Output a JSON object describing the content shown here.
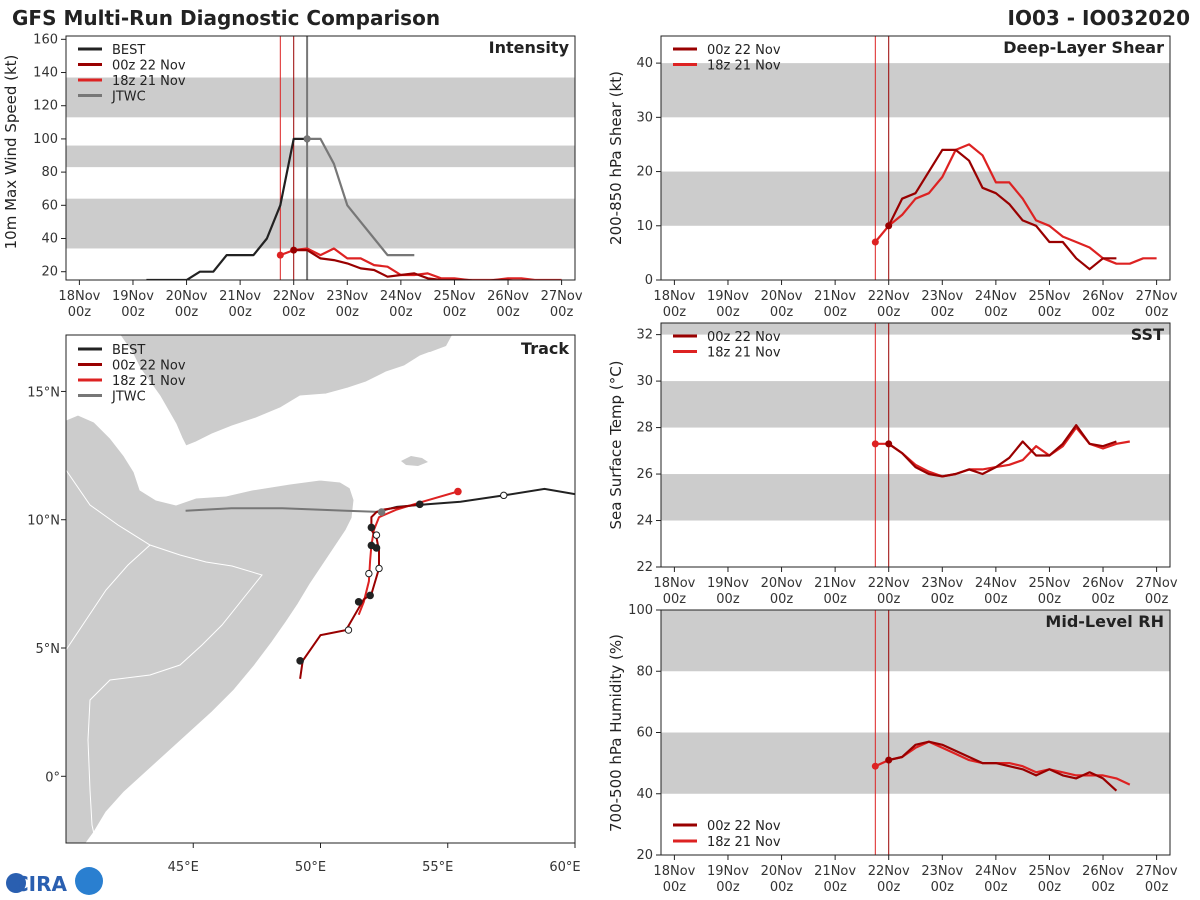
{
  "header": {
    "title": "GFS Multi-Run Diagnostic Comparison",
    "storm_id": "IO03 - IO032020"
  },
  "colors": {
    "best": "#222222",
    "run_00z": "#990000",
    "run_18z": "#dd2222",
    "jtwc": "#777777",
    "band": "#cccccc",
    "land": "#cccccc"
  },
  "time_axis": {
    "labels": [
      [
        "18Nov",
        "00z"
      ],
      [
        "19Nov",
        "00z"
      ],
      [
        "20Nov",
        "00z"
      ],
      [
        "21Nov",
        "00z"
      ],
      [
        "22Nov",
        "00z"
      ],
      [
        "23Nov",
        "00z"
      ],
      [
        "24Nov",
        "00z"
      ],
      [
        "25Nov",
        "00z"
      ],
      [
        "26Nov",
        "00z"
      ],
      [
        "27Nov",
        "00z"
      ]
    ],
    "xlim": [
      -0.25,
      9.25
    ],
    "vlines": [
      {
        "t": 3.75,
        "series": "run_18z"
      },
      {
        "t": 4.0,
        "series": "run_00z"
      },
      {
        "t": 4.25,
        "series": "jtwc"
      }
    ]
  },
  "logo": {
    "text": "CIRA"
  },
  "chart_data": [
    {
      "id": "intensity",
      "type": "line",
      "title": "Intensity",
      "ylabel": "10m Max Wind Speed (kt)",
      "ylim": [
        15,
        162
      ],
      "yticks": [
        20,
        40,
        60,
        80,
        100,
        120,
        140,
        160
      ],
      "bands": [
        [
          34,
          64
        ],
        [
          83,
          96
        ],
        [
          113,
          137
        ]
      ],
      "vlines": true,
      "legend": {
        "position": "top-left",
        "entries": [
          {
            "label": "BEST",
            "series": "best"
          },
          {
            "label": "00z 22 Nov",
            "series": "run_00z"
          },
          {
            "label": "18z 21 Nov",
            "series": "run_18z"
          },
          {
            "label": "JTWC",
            "series": "jtwc"
          }
        ]
      },
      "series": [
        {
          "name": "BEST",
          "key": "best",
          "x": [
            1.25,
            1.5,
            1.75,
            2.0,
            2.25,
            2.5,
            2.75,
            3.0,
            3.25,
            3.5,
            3.75,
            4.0,
            4.25
          ],
          "y": [
            15,
            15,
            15,
            15,
            20,
            20,
            30,
            30,
            30,
            40,
            60,
            100,
            100
          ]
        },
        {
          "name": "JTWC",
          "key": "jtwc",
          "x": [
            4.25,
            4.5,
            4.75,
            5.0,
            5.25,
            5.5,
            5.75,
            6.0,
            6.25
          ],
          "y": [
            100,
            100,
            85,
            60,
            50,
            40,
            30,
            30,
            30
          ],
          "trim": true
        },
        {
          "name": "18z 21 Nov",
          "key": "run_18z",
          "start": 3.75,
          "y": [
            30,
            33,
            34,
            30,
            34,
            28,
            28,
            24,
            23,
            18,
            18,
            19,
            16,
            16,
            15,
            15,
            15,
            16,
            16,
            15,
            15,
            15
          ]
        },
        {
          "name": "00z 22 Nov",
          "key": "run_00z",
          "start": 4.0,
          "y": [
            33,
            33,
            28,
            27,
            25,
            22,
            21,
            17,
            18,
            19,
            16,
            15,
            15,
            15,
            14,
            15,
            15,
            14,
            14,
            14,
            14
          ]
        }
      ]
    },
    {
      "id": "shear",
      "type": "line",
      "title": "Deep-Layer Shear",
      "ylabel": "200-850 hPa Shear (kt)",
      "ylim": [
        0,
        45
      ],
      "yticks": [
        0,
        10,
        20,
        30,
        40
      ],
      "bands": [
        [
          10,
          20
        ],
        [
          30,
          40
        ]
      ],
      "vlines": true,
      "legend": {
        "position": "top-left",
        "entries": [
          {
            "label": "00z 22 Nov",
            "series": "run_00z"
          },
          {
            "label": "18z 21 Nov",
            "series": "run_18z"
          }
        ]
      },
      "series": [
        {
          "name": "18z 21 Nov",
          "key": "run_18z",
          "start": 3.75,
          "y": [
            7,
            10,
            12,
            15,
            16,
            19,
            24,
            25,
            23,
            18,
            18,
            15,
            11,
            10,
            8,
            7,
            6,
            4,
            3,
            3,
            4,
            4
          ]
        },
        {
          "name": "00z 22 Nov",
          "key": "run_00z",
          "start": 4.0,
          "y": [
            10,
            15,
            16,
            20,
            24,
            24,
            22,
            17,
            16,
            14,
            11,
            10,
            7,
            7,
            4,
            2,
            4,
            4
          ]
        }
      ]
    },
    {
      "id": "sst",
      "type": "line",
      "title": "SST",
      "ylabel": "Sea Surface Temp (°C)",
      "ylim": [
        22,
        32.5
      ],
      "yticks": [
        22,
        24,
        26,
        28,
        30,
        32
      ],
      "bands": [
        [
          24,
          26
        ],
        [
          28,
          30
        ],
        [
          32,
          33
        ]
      ],
      "vlines": true,
      "legend": {
        "position": "top-left",
        "entries": [
          {
            "label": "00z 22 Nov",
            "series": "run_00z"
          },
          {
            "label": "18z 21 Nov",
            "series": "run_18z"
          }
        ]
      },
      "series": [
        {
          "name": "18z 21 Nov",
          "key": "run_18z",
          "start": 3.75,
          "y": [
            27.3,
            27.3,
            26.9,
            26.4,
            26.1,
            25.9,
            26.0,
            26.2,
            26.2,
            26.3,
            26.4,
            26.6,
            27.2,
            26.8,
            27.2,
            28.0,
            27.3,
            27.1,
            27.3,
            27.4
          ]
        },
        {
          "name": "00z 22 Nov",
          "key": "run_00z",
          "start": 4.0,
          "y": [
            27.3,
            26.9,
            26.3,
            26.0,
            25.9,
            26.0,
            26.2,
            26.0,
            26.3,
            26.7,
            27.4,
            26.8,
            26.8,
            27.3,
            28.1,
            27.3,
            27.2,
            27.4
          ]
        }
      ]
    },
    {
      "id": "rh",
      "type": "line",
      "title": "Mid-Level RH",
      "ylabel": "700-500 hPa Humidity (%)",
      "ylim": [
        20,
        100
      ],
      "yticks": [
        20,
        40,
        60,
        80,
        100
      ],
      "bands": [
        [
          40,
          60
        ],
        [
          80,
          100
        ]
      ],
      "vlines": true,
      "legend": {
        "position": "bottom-left",
        "entries": [
          {
            "label": "00z 22 Nov",
            "series": "run_00z"
          },
          {
            "label": "18z 21 Nov",
            "series": "run_18z"
          }
        ]
      },
      "series": [
        {
          "name": "18z 21 Nov",
          "key": "run_18z",
          "start": 3.75,
          "y": [
            49,
            51,
            52,
            55,
            57,
            55,
            53,
            51,
            50,
            50,
            50,
            49,
            47,
            48,
            47,
            46,
            46,
            46,
            45,
            43
          ]
        },
        {
          "name": "00z 22 Nov",
          "key": "run_00z",
          "start": 4.0,
          "y": [
            51,
            52,
            56,
            57,
            56,
            54,
            52,
            50,
            50,
            49,
            48,
            46,
            48,
            46,
            45,
            47,
            45,
            41
          ]
        }
      ]
    },
    {
      "id": "track",
      "type": "map",
      "title": "Track",
      "lon_range": [
        40,
        60
      ],
      "lat_range": [
        -2.6,
        17.2
      ],
      "xticks": [
        {
          "v": 45,
          "label": "45°E"
        },
        {
          "v": 50,
          "label": "50°E"
        },
        {
          "v": 55,
          "label": "55°E"
        },
        {
          "v": 60,
          "label": "60°E"
        }
      ],
      "yticks": [
        {
          "v": 0,
          "label": "0°"
        },
        {
          "v": 5,
          "label": "5°N"
        },
        {
          "v": 10,
          "label": "10°N"
        },
        {
          "v": 15,
          "label": "15°N"
        }
      ],
      "legend": {
        "position": "top-left",
        "entries": [
          {
            "label": "BEST",
            "series": "best"
          },
          {
            "label": "00z 22 Nov",
            "series": "run_00z"
          },
          {
            "label": "18z 21 Nov",
            "series": "run_18z"
          },
          {
            "label": "JTWC",
            "series": "jtwc"
          }
        ]
      },
      "tracks": [
        {
          "name": "BEST",
          "key": "best",
          "points": [
            [
              60.0,
              11.0
            ],
            [
              58.8,
              11.2
            ],
            [
              57.2,
              10.95
            ],
            [
              55.5,
              10.7
            ],
            [
              54.2,
              10.6
            ],
            [
              53.0,
              10.5
            ],
            [
              52.2,
              10.3
            ]
          ],
          "open_markers": [
            [
              57.2,
              10.95
            ]
          ],
          "filled_markers": []
        },
        {
          "name": "JTWC",
          "key": "jtwc",
          "points": [
            [
              52.4,
              10.3
            ],
            [
              51.0,
              10.35
            ],
            [
              48.5,
              10.45
            ],
            [
              46.5,
              10.45
            ],
            [
              44.7,
              10.35
            ]
          ],
          "open_markers": [],
          "filled_markers": [
            [
              52.4,
              10.3
            ]
          ]
        },
        {
          "name": "18z 21 Nov",
          "key": "run_18z",
          "points": [
            [
              55.4,
              11.1
            ],
            [
              54.0,
              10.7
            ],
            [
              53.0,
              10.4
            ],
            [
              52.3,
              10.1
            ],
            [
              52.1,
              9.6
            ],
            [
              52.0,
              9.0
            ],
            [
              51.95,
              8.4
            ],
            [
              51.9,
              7.6
            ],
            [
              51.7,
              6.8
            ],
            [
              51.5,
              6.3
            ]
          ],
          "open_markers": [],
          "filled_markers": [
            [
              55.4,
              11.1
            ]
          ]
        },
        {
          "name": "00z 22 Nov",
          "key": "run_00z",
          "points": [
            [
              53.9,
              10.6
            ],
            [
              52.5,
              10.4
            ],
            [
              52.2,
              10.3
            ],
            [
              52.0,
              10.1
            ],
            [
              52.0,
              9.6
            ],
            [
              52.2,
              9.3
            ],
            [
              52.3,
              8.8
            ],
            [
              52.3,
              8.1
            ],
            [
              52.0,
              7.1
            ],
            [
              51.7,
              6.9
            ],
            [
              51.0,
              5.7
            ],
            [
              50.0,
              5.5
            ],
            [
              49.3,
              4.5
            ],
            [
              49.2,
              3.8
            ]
          ],
          "open_markers": [
            [
              52.2,
              9.4
            ],
            [
              52.3,
              8.1
            ],
            [
              51.9,
              7.9
            ],
            [
              51.1,
              5.7
            ]
          ],
          "filled_markers": [
            [
              53.9,
              10.6
            ],
            [
              52.0,
              9.7
            ],
            [
              52.0,
              9.0
            ],
            [
              52.2,
              8.9
            ],
            [
              51.95,
              7.05
            ],
            [
              51.5,
              6.8
            ],
            [
              49.2,
              4.5
            ]
          ]
        }
      ]
    }
  ]
}
